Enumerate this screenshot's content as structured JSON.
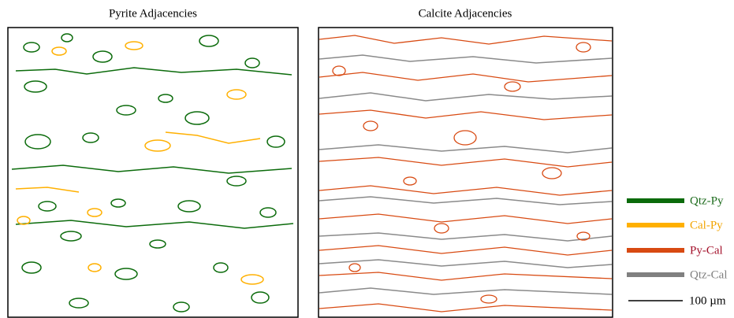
{
  "panels": [
    {
      "title": "Pyrite Adjacencies"
    },
    {
      "title": "Calcite Adjacencies"
    }
  ],
  "legend": [
    {
      "label": "Qtz-Py",
      "color": "#0b6b0b",
      "text_color": "#1c6b1c"
    },
    {
      "label": "Cal-Py",
      "color": "#ffb000",
      "text_color": "#f2a400"
    },
    {
      "label": "Py-Cal",
      "color": "#d84a12",
      "text_color": "#a3102a"
    },
    {
      "label": "Qtz-Cal",
      "color": "#808080",
      "text_color": "#808080"
    }
  ],
  "scale_bar": {
    "label": "100 µm"
  }
}
